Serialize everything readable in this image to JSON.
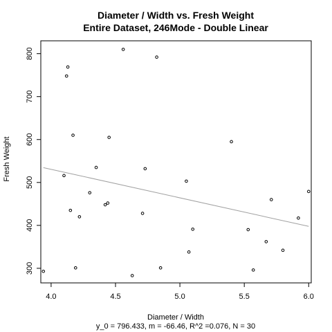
{
  "chart_data": {
    "type": "scatter",
    "title": "Diameter / Width vs. Fresh Weight",
    "subtitle": "Entire Dataset, 246Mode - Double Linear",
    "xlabel": "Diameter / Width",
    "ylabel": "Fresh Weight",
    "caption": "y_0 = 796.433, m = -66.46, R^2 =0.076, N = 30",
    "xlim": [
      3.92,
      6.02
    ],
    "ylim": [
      266,
      830
    ],
    "x_ticks": [
      4.0,
      4.5,
      5.0,
      5.5,
      6.0
    ],
    "x_tick_labels": [
      "4.0",
      "4.5",
      "5.0",
      "5.5",
      "6.0"
    ],
    "y_ticks": [
      300,
      400,
      500,
      600,
      700,
      800
    ],
    "y_tick_labels": [
      "300",
      "400",
      "500",
      "600",
      "700",
      "800"
    ],
    "points": [
      {
        "x": 3.94,
        "y": 293
      },
      {
        "x": 4.1,
        "y": 516
      },
      {
        "x": 4.12,
        "y": 748
      },
      {
        "x": 4.13,
        "y": 769
      },
      {
        "x": 4.15,
        "y": 435
      },
      {
        "x": 4.17,
        "y": 610
      },
      {
        "x": 4.19,
        "y": 301
      },
      {
        "x": 4.22,
        "y": 420
      },
      {
        "x": 4.3,
        "y": 476
      },
      {
        "x": 4.35,
        "y": 535
      },
      {
        "x": 4.42,
        "y": 448
      },
      {
        "x": 4.44,
        "y": 452
      },
      {
        "x": 4.45,
        "y": 605
      },
      {
        "x": 4.56,
        "y": 810
      },
      {
        "x": 4.63,
        "y": 283
      },
      {
        "x": 4.71,
        "y": 428
      },
      {
        "x": 4.73,
        "y": 532
      },
      {
        "x": 4.82,
        "y": 792
      },
      {
        "x": 4.85,
        "y": 301
      },
      {
        "x": 5.05,
        "y": 503
      },
      {
        "x": 5.07,
        "y": 338
      },
      {
        "x": 5.1,
        "y": 391
      },
      {
        "x": 5.4,
        "y": 595
      },
      {
        "x": 5.53,
        "y": 390
      },
      {
        "x": 5.57,
        "y": 296
      },
      {
        "x": 5.67,
        "y": 362
      },
      {
        "x": 5.71,
        "y": 460
      },
      {
        "x": 5.8,
        "y": 342
      },
      {
        "x": 5.92,
        "y": 417
      },
      {
        "x": 6.0,
        "y": 479
      }
    ],
    "fit_line": {
      "intercept": 796.433,
      "slope": -66.46,
      "x_start": 3.94,
      "x_end": 6.0
    },
    "grid": false,
    "colors": {
      "points": "#000000",
      "fit_line": "#a0a0a0",
      "axes": "#000000"
    }
  }
}
